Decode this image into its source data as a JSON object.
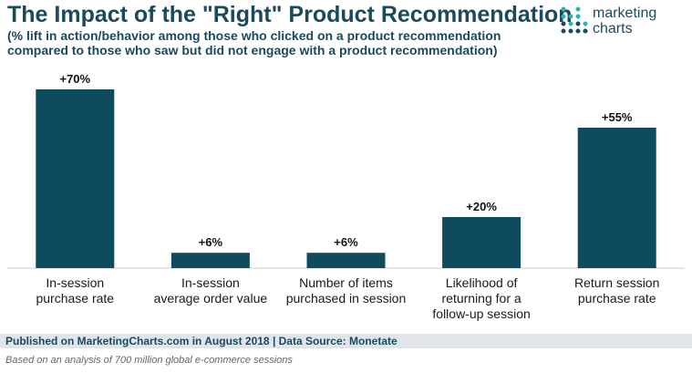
{
  "header": {
    "title": "The Impact of the \"Right\" Product Recommendation",
    "subtitle": "(% lift in action/behavior among those who clicked on a product recommendation compared to those who saw but did not engage with a product recommendation)"
  },
  "logo": {
    "line1": "marketing",
    "line2": "charts"
  },
  "footer": {
    "published": "Published on MarketingCharts.com in August 2018 | Data Source: Monetate",
    "note": "Based on an analysis of 700 million global e-commerce sessions"
  },
  "colors": {
    "bar": "#0e4b5f",
    "accent": "#1a4a5c",
    "logo_teal": "#2bb5b0",
    "logo_dark": "#1a4a5c"
  },
  "chart_data": {
    "type": "bar",
    "title": "The Impact of the \"Right\" Product Recommendation",
    "xlabel": "",
    "ylabel": "",
    "ylim": [
      0,
      70
    ],
    "categories": [
      [
        "In-session",
        "purchase rate"
      ],
      [
        "In-session",
        "average order value"
      ],
      [
        "Number of items",
        "purchased in session"
      ],
      [
        "Likelihood of",
        "returning for a",
        "follow-up session"
      ],
      [
        "Return session",
        "purchase rate"
      ]
    ],
    "values": [
      70,
      6,
      6,
      20,
      55
    ],
    "value_labels": [
      "+70%",
      "+6%",
      "+6%",
      "+20%",
      "+55%"
    ]
  }
}
